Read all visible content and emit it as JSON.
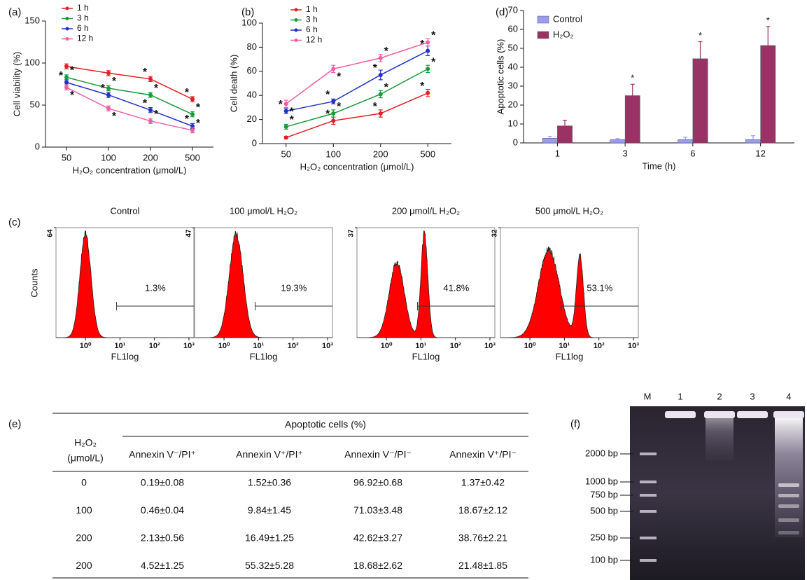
{
  "chart_data": [
    {
      "type": "line",
      "panel": "(a)",
      "y_label": "Cell viability (%)",
      "x_label": "H₂O₂ concentration (μmol/L)",
      "categories": [
        "50",
        "100",
        "200",
        "500"
      ],
      "ylim": [
        0,
        150
      ],
      "yticks": [
        0,
        50,
        100,
        150
      ],
      "series": [
        {
          "name": "1 h",
          "color": "#e41e26",
          "values": [
            96,
            88,
            81,
            57
          ],
          "errors": [
            3,
            3,
            3,
            3
          ],
          "marks": [
            null,
            null,
            "*",
            "*"
          ]
        },
        {
          "name": "3 h",
          "color": "#1a9a3a",
          "values": [
            83,
            70,
            62,
            39
          ],
          "errors": [
            3,
            3,
            3,
            3
          ],
          "marks": [
            "*",
            "*",
            "*",
            "*"
          ]
        },
        {
          "name": "6 h",
          "color": "#2130c8",
          "values": [
            77,
            62,
            44,
            25
          ],
          "errors": [
            3,
            3,
            3,
            3
          ],
          "marks": [
            "*",
            "*",
            "*",
            "*"
          ]
        },
        {
          "name": "12 h",
          "color": "#ee5fa4",
          "values": [
            71,
            46,
            31,
            20
          ],
          "errors": [
            3,
            3,
            3,
            3
          ],
          "marks": [
            "*",
            "*",
            "*",
            "*"
          ]
        }
      ]
    },
    {
      "type": "line",
      "panel": "(b)",
      "y_label": "Cell death (%)",
      "x_label": "H₂O₂ concentration (μmol/L)",
      "categories": [
        "50",
        "100",
        "200",
        "500"
      ],
      "ylim": [
        0,
        100
      ],
      "yticks": [
        0,
        20,
        40,
        60,
        80,
        100
      ],
      "series": [
        {
          "name": "1 h",
          "color": "#e41e26",
          "values": [
            5,
            19,
            25,
            42
          ],
          "errors": [
            1,
            3,
            3,
            3
          ],
          "marks": [
            null,
            "*",
            "*",
            "*"
          ]
        },
        {
          "name": "3 h",
          "color": "#1a9a3a",
          "values": [
            14,
            25,
            41,
            62
          ],
          "errors": [
            2,
            3,
            3,
            3
          ],
          "marks": [
            "*",
            "*",
            "*",
            "*"
          ]
        },
        {
          "name": "6 h",
          "color": "#2130c8",
          "values": [
            27,
            35,
            57,
            77
          ],
          "errors": [
            2,
            2,
            4,
            4
          ],
          "marks": [
            "*",
            "*",
            "*",
            "*"
          ]
        },
        {
          "name": "12 h",
          "color": "#ee5fa4",
          "values": [
            33,
            62,
            71,
            84
          ],
          "errors": [
            3,
            3,
            3,
            3
          ],
          "marks": [
            "*",
            "*",
            "*",
            "*"
          ]
        }
      ]
    },
    {
      "type": "bar",
      "panel": "(d)",
      "y_label": "Apoptotic cells (%)",
      "x_label": "Time (h)",
      "categories": [
        "1",
        "3",
        "6",
        "12"
      ],
      "ylim": [
        0,
        70
      ],
      "yticks": [
        0,
        10,
        20,
        30,
        40,
        50,
        60,
        70
      ],
      "series": [
        {
          "name": "Control",
          "color": "#9a9cf0",
          "values": [
            2.5,
            1.8,
            1.8,
            1.8
          ],
          "errors": [
            1,
            0.5,
            1.2,
            2
          ],
          "marks": [
            null,
            null,
            null,
            null
          ]
        },
        {
          "name": "H₂O₂",
          "color": "#993366",
          "values": [
            9,
            25,
            44.5,
            51.5
          ],
          "errors": [
            3,
            6,
            9,
            10
          ],
          "marks": [
            null,
            "*",
            "*",
            "*"
          ]
        }
      ]
    }
  ],
  "flow": {
    "panel": "(c)",
    "y_label": "Counts",
    "x_label": "FL1log",
    "log_x": true,
    "xlim": [
      0.14,
      1390
    ],
    "xticks": [
      {
        "value": 1,
        "label": "10⁰"
      },
      {
        "value": 10,
        "label": "10¹"
      },
      {
        "value": 100,
        "label": "10²"
      },
      {
        "value": 1000,
        "label": "10³"
      }
    ],
    "panels": [
      {
        "title": "Control",
        "ylim": [
          0,
          64
        ],
        "yticks": [
          64
        ],
        "gate_label": "1.3%"
      },
      {
        "title": "100 μmol/L H₂O₂",
        "ylim": [
          0,
          47
        ],
        "yticks": [
          47
        ],
        "gate_label": "19.3%"
      },
      {
        "title": "200 μmol/L H₂O₂",
        "ylim": [
          0,
          37
        ],
        "yticks": [
          37
        ],
        "gate_label": "41.8%"
      },
      {
        "title": "500 μmol/L H₂O₂",
        "ylim": [
          0,
          32
        ],
        "yticks": [
          32
        ],
        "gate_label": "53.1%"
      }
    ]
  },
  "table": {
    "panel": "(e)",
    "row_header": [
      "H₂O₂",
      "(μmol/L)"
    ],
    "group_header": "Apoptotic cells (%)",
    "columns": [
      "Annexin V⁻/PI⁺",
      "Annexin V⁺/PI⁺",
      "Annexin V⁻/PI⁻",
      "Annexin V⁺/PI⁻"
    ],
    "rows": [
      [
        "0",
        "0.19±0.08",
        "1.52±0.36",
        "96.92±0.68",
        "1.37±0.42"
      ],
      [
        "100",
        "0.46±0.04",
        "9.84±1.45",
        "71.03±3.48",
        "18.67±2.12"
      ],
      [
        "200",
        "2.13±0.56",
        "16.49±1.25",
        "42.62±3.27",
        "38.76±2.21"
      ],
      [
        "200",
        "4.52±1.25",
        "55.32±5.28",
        "18.68±2.62",
        "21.48±1.85"
      ]
    ]
  },
  "gel": {
    "panel": "(f)",
    "lanes": [
      "M",
      "1",
      "2",
      "3",
      "4"
    ],
    "ladder": [
      "2000 bp",
      "1000 bp",
      "750 bp",
      "500 bp",
      "250 bp",
      "100 bp"
    ]
  }
}
